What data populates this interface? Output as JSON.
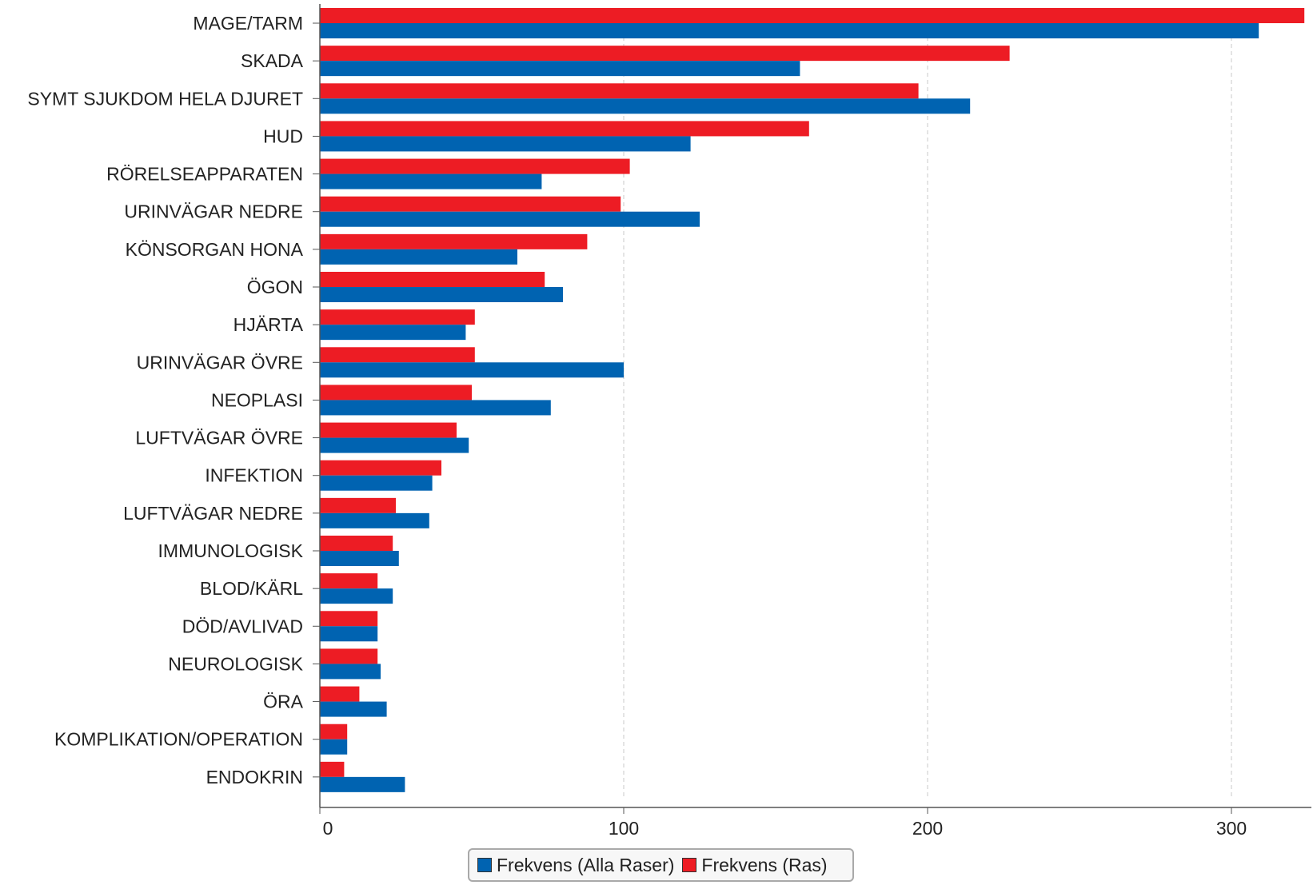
{
  "chart_data": {
    "type": "bar",
    "orientation": "horizontal",
    "categories": [
      "MAGE/TARM",
      "SKADA",
      "SYMT SJUKDOM HELA DJURET",
      "HUD",
      "RÖRELSEAPPARATEN",
      "URINVÄGAR NEDRE",
      "KÖNSORGAN HONA",
      "ÖGON",
      "HJÄRTA",
      "URINVÄGAR ÖVRE",
      "NEOPLASI",
      "LUFTVÄGAR ÖVRE",
      "INFEKTION",
      "LUFTVÄGAR NEDRE",
      "IMMUNOLOGISK",
      "BLOD/KÄRL",
      "DÖD/AVLIVAD",
      "NEUROLOGISK",
      "ÖRA",
      "KOMPLIKATION/OPERATION",
      "ENDOKRIN"
    ],
    "series": [
      {
        "name": "Frekvens (Ras)",
        "color": "#ed1c24",
        "values": [
          324,
          227,
          197,
          161,
          102,
          99,
          88,
          74,
          51,
          51,
          50,
          45,
          40,
          25,
          24,
          19,
          19,
          19,
          13,
          9,
          8
        ]
      },
      {
        "name": "Frekvens (Alla Raser)",
        "color": "#0063b1",
        "values": [
          309,
          158,
          214,
          122,
          73,
          125,
          65,
          80,
          48,
          100,
          76,
          49,
          37,
          36,
          26,
          24,
          19,
          20,
          22,
          9,
          28
        ]
      }
    ],
    "x_ticks": [
      "0",
      "100",
      "200",
      "300"
    ],
    "xlim": [
      0,
      326
    ],
    "grid": "vertical dashed",
    "legend_position": "bottom-center",
    "title": "",
    "xlabel": "",
    "ylabel": ""
  },
  "legend": {
    "items": [
      {
        "label": "Frekvens (Alla Raser)",
        "color": "#0063b1"
      },
      {
        "label": "Frekvens (Ras)",
        "color": "#ed1c24"
      }
    ]
  }
}
